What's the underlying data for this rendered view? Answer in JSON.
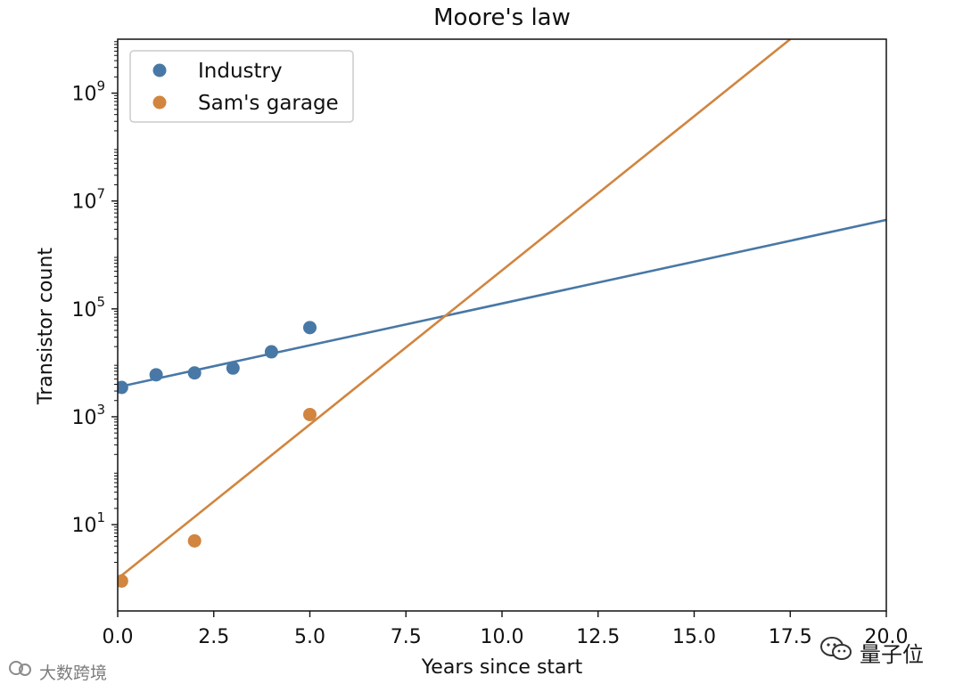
{
  "chart_data": {
    "type": "scatter",
    "title": "Moore's law",
    "xlabel": "Years since start",
    "ylabel": "Transistor count",
    "yscale": "log",
    "xlim": [
      0,
      20
    ],
    "ylim_exp": [
      -0.6,
      10
    ],
    "xticks": [
      "0.0",
      "2.5",
      "5.0",
      "7.5",
      "10.0",
      "12.5",
      "15.0",
      "17.5",
      "20.0"
    ],
    "xtick_values": [
      0,
      2.5,
      5,
      7.5,
      10,
      12.5,
      15,
      17.5,
      20
    ],
    "ytick_exponents": [
      1,
      3,
      5,
      7,
      9
    ],
    "ytick_base": "10",
    "legend_position": "upper-left",
    "series": [
      {
        "name": "Industry",
        "color": "#4878a6",
        "points": [
          {
            "x": 0.1,
            "y": 3500
          },
          {
            "x": 1,
            "y": 6000
          },
          {
            "x": 2,
            "y": 6500
          },
          {
            "x": 3,
            "y": 8000
          },
          {
            "x": 4,
            "y": 16000
          },
          {
            "x": 5,
            "y": 45000
          }
        ],
        "fit": {
          "x": [
            0,
            20
          ],
          "log10_y": [
            3.55,
            6.65
          ]
        }
      },
      {
        "name": "Sam's garage",
        "color": "#d1853e",
        "points": [
          {
            "x": 0.1,
            "y": 0.9
          },
          {
            "x": 2,
            "y": 5
          },
          {
            "x": 5,
            "y": 1100
          }
        ],
        "fit": {
          "x": [
            0,
            17.5
          ],
          "log10_y": [
            0.0,
            10.0
          ]
        }
      }
    ]
  },
  "watermarks": {
    "left_text": "大数跨境",
    "right_text": "量子位"
  }
}
